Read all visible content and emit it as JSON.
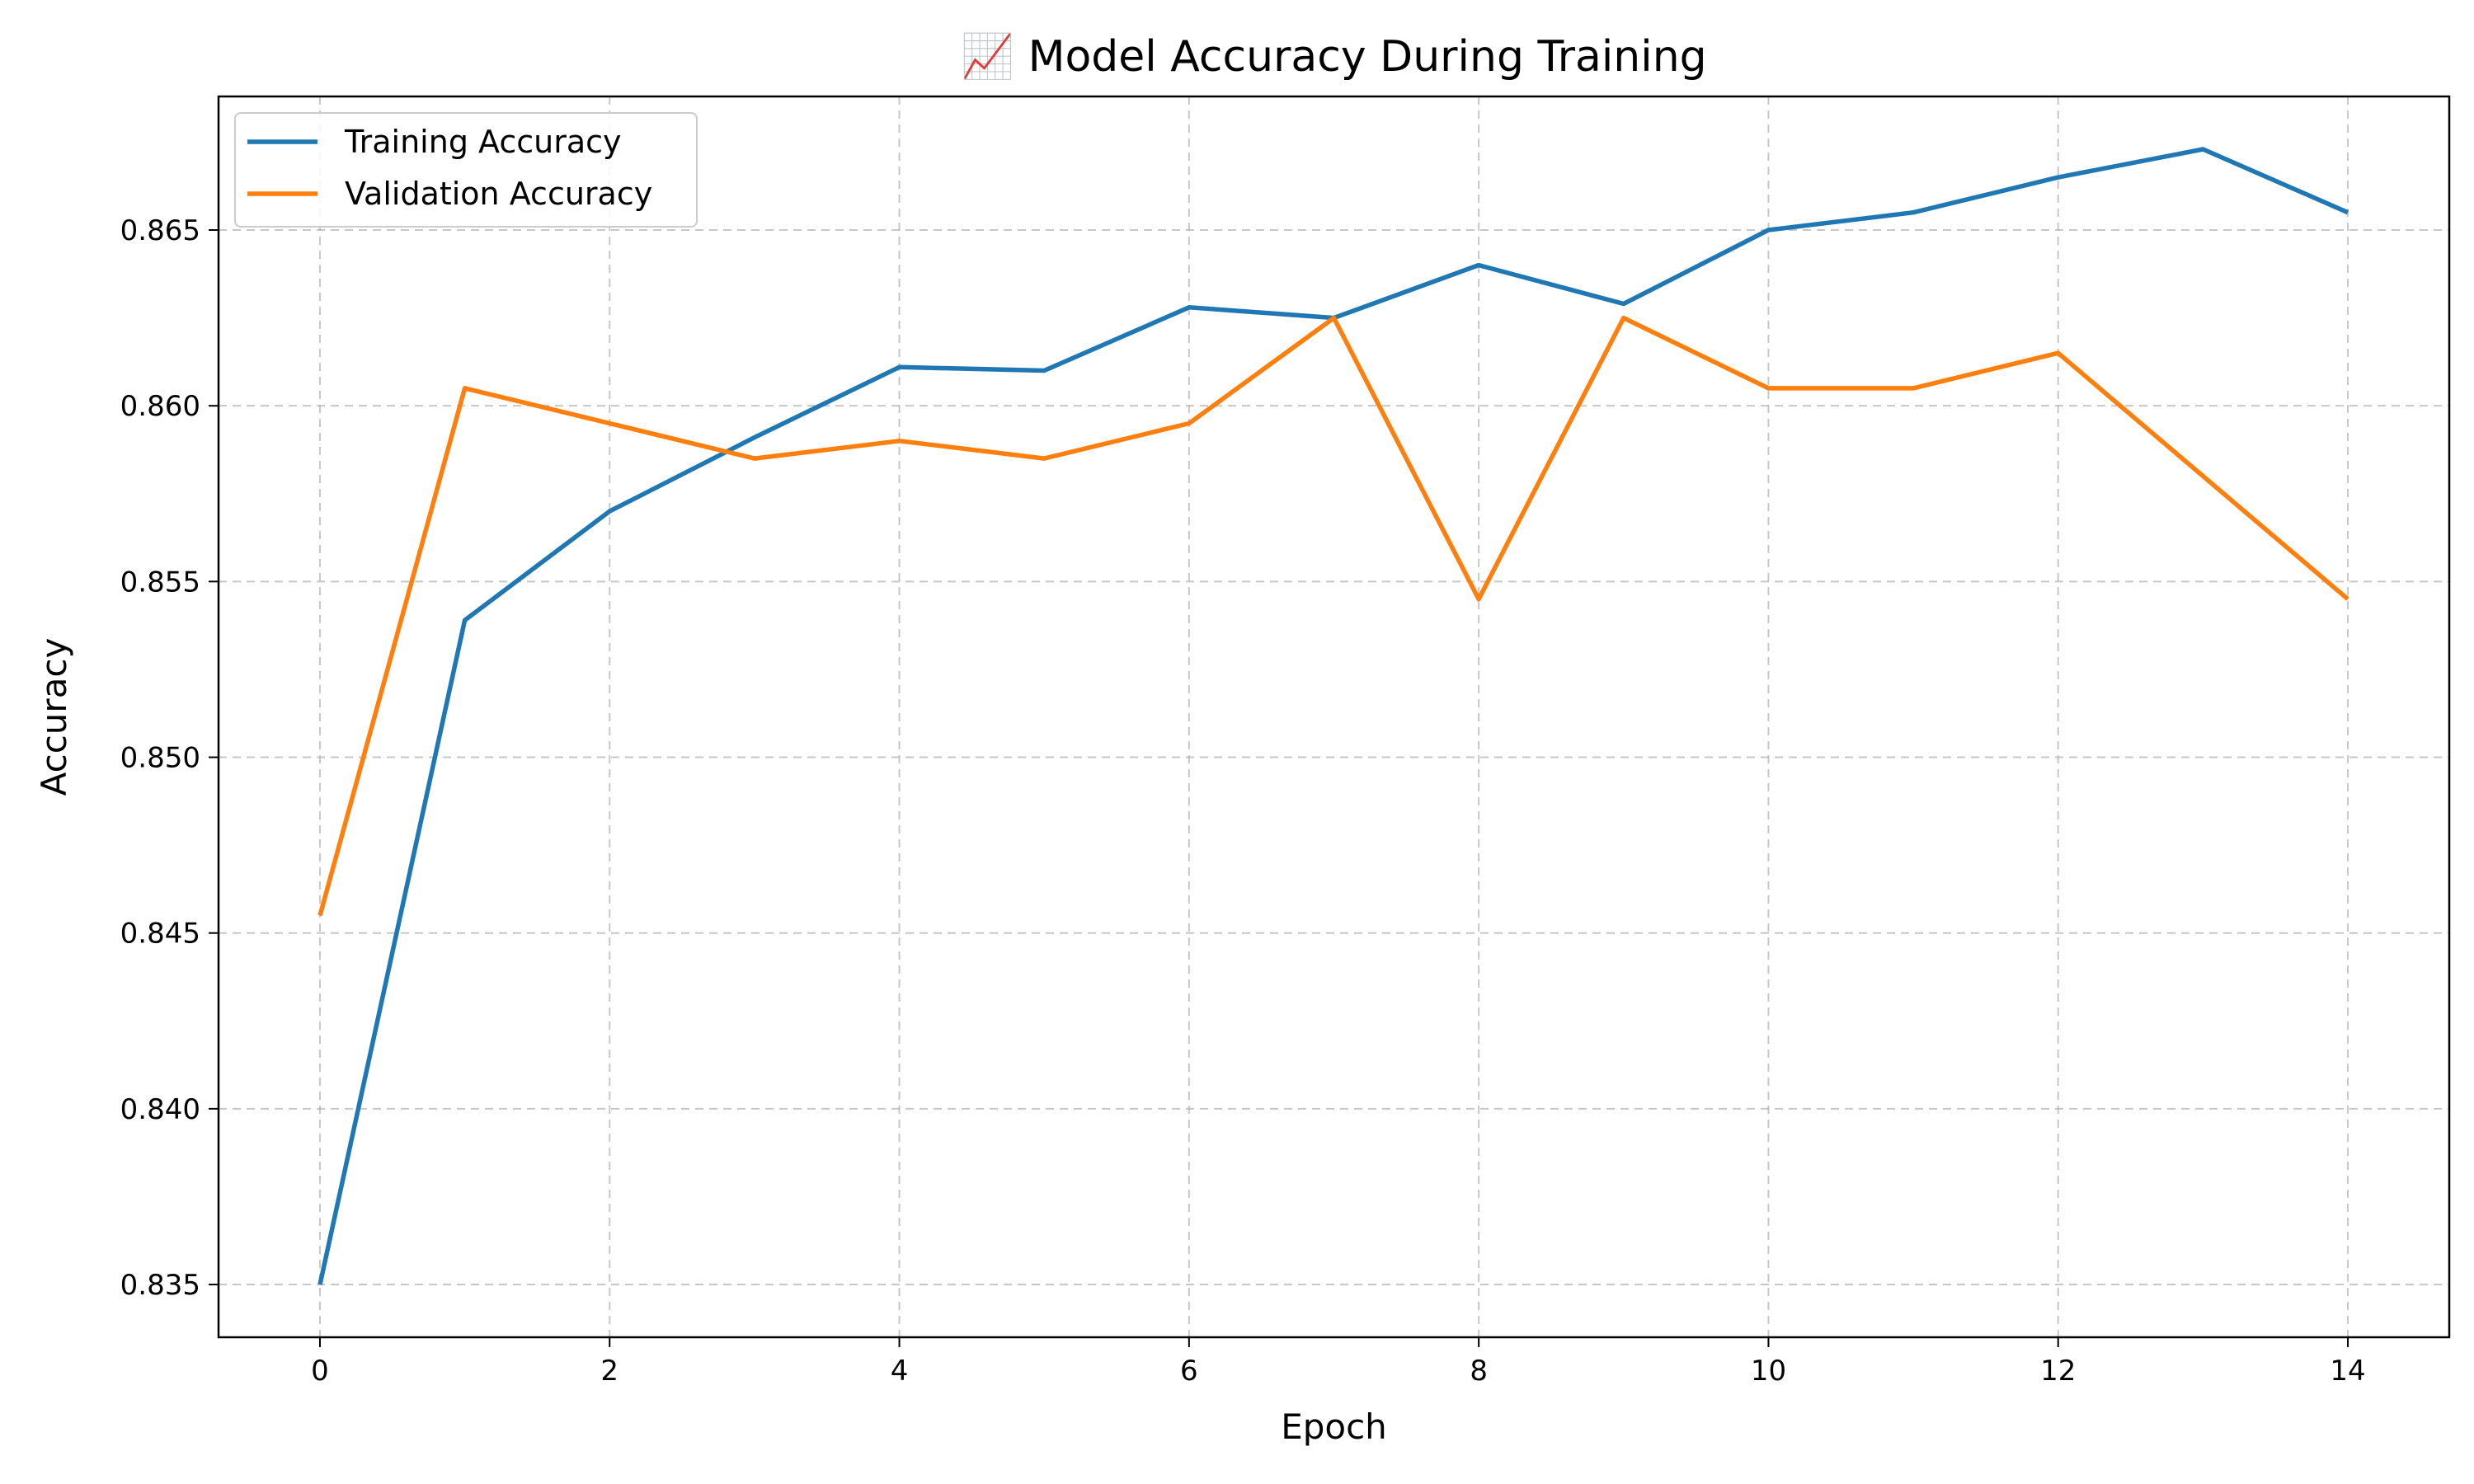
{
  "chart_data": {
    "type": "line",
    "title": "📈 Model Accuracy During Training",
    "xlabel": "Epoch",
    "ylabel": "Accuracy",
    "x": [
      0,
      1,
      2,
      3,
      4,
      5,
      6,
      7,
      8,
      9,
      10,
      11,
      12,
      13,
      14
    ],
    "xticks": [
      0,
      2,
      4,
      6,
      8,
      10,
      12,
      14
    ],
    "xtick_labels": [
      "0",
      "2",
      "4",
      "6",
      "8",
      "10",
      "12",
      "14"
    ],
    "yticks": [
      0.835,
      0.84,
      0.845,
      0.85,
      0.855,
      0.86,
      0.865
    ],
    "ytick_labels": [
      "0.835",
      "0.840",
      "0.845",
      "0.850",
      "0.855",
      "0.860",
      "0.865"
    ],
    "xlim": [
      -0.7,
      14.7
    ],
    "ylim": [
      0.8335,
      0.8688
    ],
    "grid": true,
    "legend_position": "upper-left",
    "series": [
      {
        "name": "Training Accuracy",
        "color": "#1f77b4",
        "values": [
          0.835,
          0.8539,
          0.857,
          0.8591,
          0.8611,
          0.861,
          0.8628,
          0.8625,
          0.864,
          0.8629,
          0.865,
          0.8655,
          0.8665,
          0.8673,
          0.8655
        ]
      },
      {
        "name": "Validation Accuracy",
        "color": "#ff7f0e",
        "values": [
          0.8455,
          0.8605,
          0.8595,
          0.8585,
          0.859,
          0.8585,
          0.8595,
          0.8625,
          0.8545,
          0.8625,
          0.8605,
          0.8605,
          0.8615,
          0.858,
          0.8545
        ]
      }
    ]
  }
}
